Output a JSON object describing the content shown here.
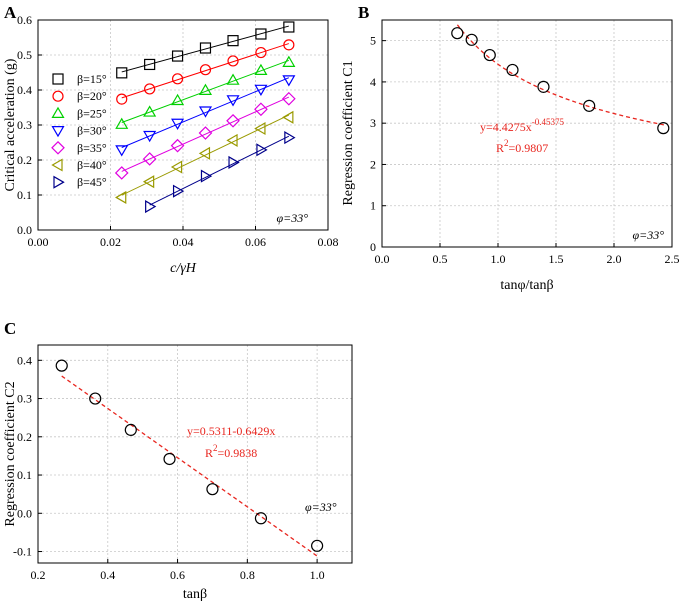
{
  "chart_data": [
    {
      "panel": "A",
      "type": "scatter",
      "xlabel": "c/γH",
      "ylabel": "Critical acceleration (g)",
      "xlim": [
        0.0,
        0.08
      ],
      "ylim": [
        0.0,
        0.6
      ],
      "xticks": [
        "0.00",
        "0.02",
        "0.04",
        "0.06",
        "0.08"
      ],
      "yticks": [
        "0.0",
        "0.1",
        "0.2",
        "0.3",
        "0.4",
        "0.5",
        "0.6"
      ],
      "annotation": "φ=33°",
      "series": [
        {
          "name": "β=15°",
          "marker": "square",
          "color": "#000000",
          "x": [
            0.0231,
            0.0308,
            0.0385,
            0.0462,
            0.0538,
            0.0615,
            0.0692
          ],
          "y": [
            0.449,
            0.473,
            0.497,
            0.52,
            0.541,
            0.56,
            0.58
          ]
        },
        {
          "name": "β=20°",
          "marker": "circle",
          "color": "#ff0000",
          "x": [
            0.0231,
            0.0308,
            0.0385,
            0.0462,
            0.0538,
            0.0615,
            0.0692
          ],
          "y": [
            0.374,
            0.403,
            0.432,
            0.458,
            0.483,
            0.507,
            0.529
          ]
        },
        {
          "name": "β=25°",
          "marker": "triangle-up",
          "color": "#00d000",
          "x": [
            0.0231,
            0.0308,
            0.0385,
            0.0462,
            0.0538,
            0.0615,
            0.0692
          ],
          "y": [
            0.302,
            0.337,
            0.37,
            0.399,
            0.428,
            0.456,
            0.479
          ]
        },
        {
          "name": "β=30°",
          "marker": "triangle-down",
          "color": "#0000ff",
          "x": [
            0.0231,
            0.0308,
            0.0385,
            0.0462,
            0.0538,
            0.0615,
            0.0692
          ],
          "y": [
            0.229,
            0.27,
            0.305,
            0.34,
            0.372,
            0.402,
            0.429
          ]
        },
        {
          "name": "β=35°",
          "marker": "diamond",
          "color": "#e000e0",
          "x": [
            0.0231,
            0.0308,
            0.0385,
            0.0462,
            0.0538,
            0.0615,
            0.0692
          ],
          "y": [
            0.163,
            0.203,
            0.241,
            0.277,
            0.312,
            0.345,
            0.375
          ]
        },
        {
          "name": "β=40°",
          "marker": "triangle-left",
          "color": "#9a9a00",
          "x": [
            0.0231,
            0.0308,
            0.0385,
            0.0462,
            0.0538,
            0.0615,
            0.0692
          ],
          "y": [
            0.093,
            0.138,
            0.18,
            0.219,
            0.256,
            0.29,
            0.322
          ]
        },
        {
          "name": "β=45°",
          "marker": "triangle-right",
          "color": "#00008b",
          "x": [
            0.0308,
            0.0385,
            0.0462,
            0.0538,
            0.0615,
            0.0692
          ],
          "y": [
            0.067,
            0.111,
            0.154,
            0.193,
            0.229,
            0.264
          ]
        }
      ]
    },
    {
      "panel": "B",
      "type": "scatter",
      "xlabel": "tanφ/tanβ",
      "ylabel": "Regression coefficient C1",
      "xlim": [
        0.0,
        2.5
      ],
      "ylim": [
        0,
        5.5
      ],
      "xticks": [
        "0.0",
        "0.5",
        "1.0",
        "1.5",
        "2.0",
        "2.5"
      ],
      "yticks": [
        "0",
        "1",
        "2",
        "3",
        "4",
        "5"
      ],
      "annotation": "φ=33°",
      "equation": {
        "prefix": "y=4.4275x",
        "exponent": "-0.45375"
      },
      "r2": {
        "prefix": "R",
        "sup": "2",
        "value": "=0.9807"
      },
      "fit": {
        "a": 4.4275,
        "b": -0.45375,
        "xrange": [
          0.65,
          2.43
        ]
      },
      "series": [
        {
          "name": "C1",
          "marker": "circle",
          "color": "#000000",
          "x": [
            0.649,
            0.773,
            0.929,
            1.125,
            1.392,
            1.786,
            2.425
          ],
          "y": [
            5.18,
            5.02,
            4.65,
            4.29,
            3.88,
            3.42,
            2.88
          ]
        }
      ]
    },
    {
      "panel": "C",
      "type": "scatter",
      "xlabel": "tanβ",
      "ylabel": "Regression coefficient C2",
      "xlim": [
        0.2,
        1.1
      ],
      "ylim": [
        -0.13,
        0.44
      ],
      "xticks": [
        "0.2",
        "0.4",
        "0.6",
        "0.8",
        "1.0"
      ],
      "yticks": [
        "-0.1",
        "0.0",
        "0.1",
        "0.2",
        "0.3",
        "0.4"
      ],
      "annotation": "φ=33°",
      "equation": {
        "text": "y=0.5311-0.6429x"
      },
      "r2": {
        "prefix": "R",
        "sup": "2",
        "value": "=0.9838"
      },
      "fit": {
        "a": 0.5311,
        "b": -0.6429,
        "xrange": [
          0.268,
          1.0
        ]
      },
      "series": [
        {
          "name": "C2",
          "marker": "circle",
          "color": "#000000",
          "x": [
            0.268,
            0.364,
            0.466,
            0.577,
            0.7,
            0.839,
            1.0
          ],
          "y": [
            0.386,
            0.3,
            0.218,
            0.142,
            0.063,
            -0.013,
            -0.085
          ]
        }
      ]
    }
  ]
}
